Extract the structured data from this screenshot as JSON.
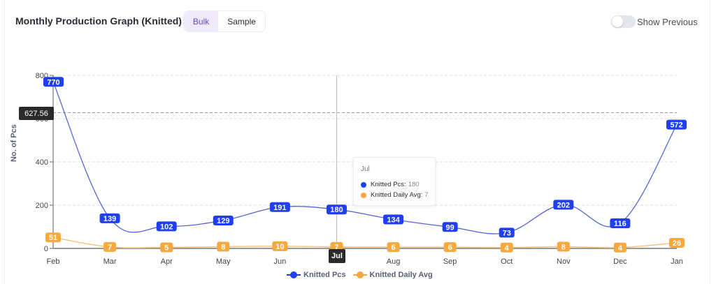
{
  "header": {
    "title": "Monthly Production Graph (Knitted)",
    "segments": [
      {
        "label": "Bulk",
        "active": true
      },
      {
        "label": "Sample",
        "active": false
      }
    ],
    "toggle": {
      "label": "Show Previous",
      "on": false
    }
  },
  "colors": {
    "knitted_pcs": "#1f3ff0",
    "knitted_daily_avg": "#f7a940",
    "line_pcs": "#5566d8",
    "line_avg": "#f5c27e"
  },
  "tooltip": {
    "title": "Jul",
    "rows": [
      {
        "label": "Knitted Pcs:",
        "value": "180"
      },
      {
        "label": "Knitted Daily Avg:",
        "value": "7"
      }
    ]
  },
  "crosshair_label": "Jul",
  "reference_label": "627.56",
  "legend": [
    {
      "label": "Knitted Pcs"
    },
    {
      "label": "Knitted Daily Avg"
    }
  ],
  "chart_data": {
    "type": "line",
    "title": "Monthly Production Graph (Knitted)",
    "xlabel": "",
    "ylabel": "No. of Pcs",
    "ylim": [
      0,
      800
    ],
    "yticks": [
      0,
      200,
      400,
      600,
      800
    ],
    "grid": true,
    "legend_position": "bottom",
    "categories": [
      "Feb",
      "Mar",
      "Apr",
      "May",
      "Jun",
      "Jul",
      "Aug",
      "Sep",
      "Oct",
      "Nov",
      "Dec",
      "Jan"
    ],
    "series": [
      {
        "name": "Knitted Pcs",
        "values": [
          770,
          139,
          102,
          129,
          191,
          180,
          134,
          99,
          73,
          202,
          116,
          572
        ]
      },
      {
        "name": "Knitted Daily Avg",
        "values": [
          51,
          7,
          5,
          8,
          10,
          7,
          6,
          6,
          4,
          8,
          4,
          26
        ]
      }
    ],
    "annotations": {
      "reference_line": 627.56,
      "highlighted_category": "Jul"
    }
  }
}
